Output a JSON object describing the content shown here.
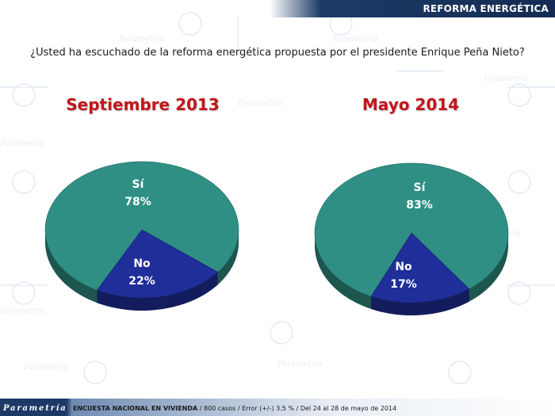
{
  "header": {
    "title": "REFORMA ENERGÉTICA"
  },
  "question": "¿Usted ha escuchado de la reforma energética propuesta por el presidente Enrique Peña Nieto?",
  "colors": {
    "si": "#2f8f84",
    "no": "#1f2e99",
    "title_red": "#c0161b",
    "header_navy": "#1d3a66"
  },
  "chart_data": [
    {
      "type": "pie",
      "title": "Septiembre 2013",
      "slices": [
        {
          "label": "Sí",
          "value": 78,
          "display": "78%"
        },
        {
          "label": "No",
          "value": 22,
          "display": "22%"
        }
      ]
    },
    {
      "type": "pie",
      "title": "Mayo 2014",
      "slices": [
        {
          "label": "Sí",
          "value": 83,
          "display": "83%"
        },
        {
          "label": "No",
          "value": 17,
          "display": "17%"
        }
      ]
    }
  ],
  "footer": {
    "logo": "Parametría",
    "note_bold": "ENCUESTA NACIONAL EN VIVIENDA",
    "note_rest": " / 800 casos / Error (+/-) 3.5 % / Del 24 al 28 de mayo de 2014"
  }
}
